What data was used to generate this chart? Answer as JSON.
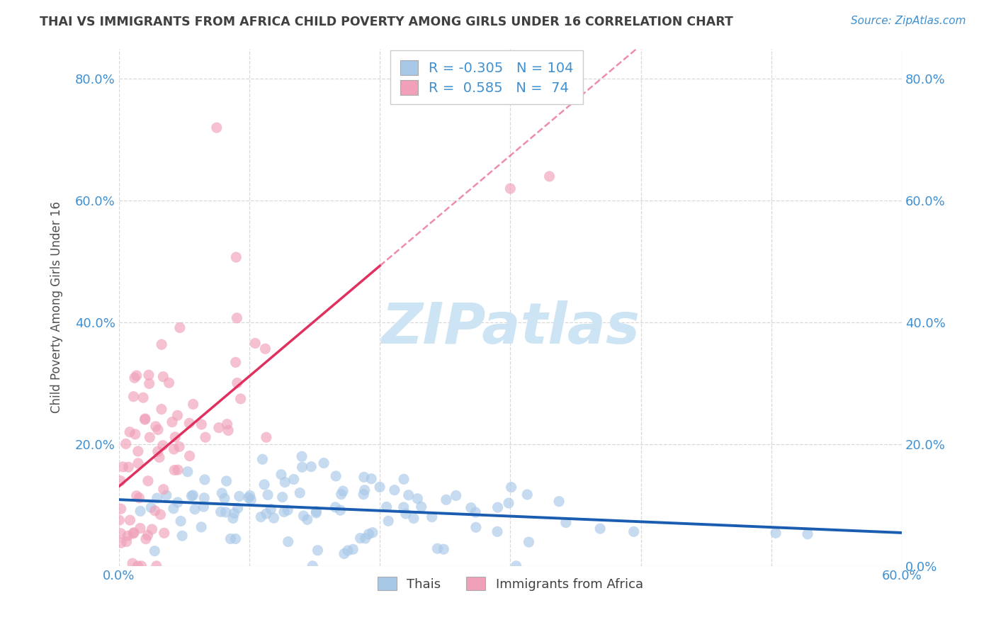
{
  "title": "THAI VS IMMIGRANTS FROM AFRICA CHILD POVERTY AMONG GIRLS UNDER 16 CORRELATION CHART",
  "source": "Source: ZipAtlas.com",
  "ylabel": "Child Poverty Among Girls Under 16",
  "xlim": [
    0.0,
    0.6
  ],
  "ylim": [
    0.0,
    0.85
  ],
  "yticks": [
    0.0,
    0.2,
    0.4,
    0.6,
    0.8
  ],
  "xticks": [
    0.0,
    0.1,
    0.2,
    0.3,
    0.4,
    0.5,
    0.6
  ],
  "thai_color": "#a8c8e8",
  "africa_color": "#f0a0b8",
  "thai_line_color": "#1a5cb0",
  "africa_line_color": "#e03060",
  "thai_R": -0.305,
  "thai_N": 104,
  "africa_R": 0.585,
  "africa_N": 74,
  "background_color": "#ffffff",
  "grid_color": "#d8d8d8",
  "watermark_text": "ZIPatlas",
  "watermark_color": "#cce4f4",
  "title_color": "#404040",
  "axis_label_color": "#505050",
  "tick_label_color": "#4090d0",
  "legend_color": "#4090d0"
}
